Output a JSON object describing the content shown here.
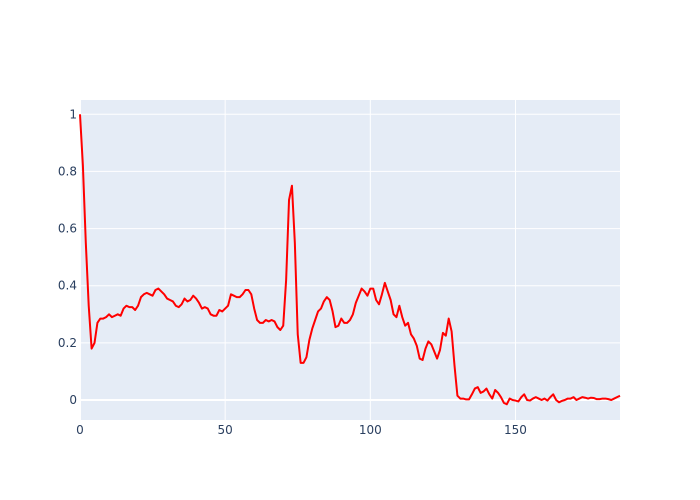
{
  "chart_data": {
    "type": "line",
    "title": "",
    "xlabel": "",
    "ylabel": "",
    "xlim": [
      0,
      186
    ],
    "ylim": [
      -0.07,
      1.05
    ],
    "x_ticks": [
      0,
      50,
      100,
      150
    ],
    "y_ticks": [
      0,
      0.2,
      0.4,
      0.6,
      0.8,
      1
    ],
    "x_tick_labels": [
      "0",
      "50",
      "100",
      "150"
    ],
    "y_tick_labels": [
      "0",
      "0.2",
      "0.4",
      "0.6",
      "0.8",
      "1"
    ],
    "grid": true,
    "legend": "none",
    "colors": {
      "plot_bg": "#e5ecf6",
      "grid": "#ffffff",
      "line": "#ff0000",
      "text": "#2a3f5f"
    },
    "series": [
      {
        "x": [
          0,
          1,
          2,
          3,
          4,
          5,
          6,
          7,
          8,
          9,
          10,
          11,
          12,
          13,
          14,
          15,
          16,
          17,
          18,
          19,
          20,
          21,
          22,
          23,
          24,
          25,
          26,
          27,
          28,
          29,
          30,
          31,
          32,
          33,
          34,
          35,
          36,
          37,
          38,
          39,
          40,
          41,
          42,
          43,
          44,
          45,
          46,
          47,
          48,
          49,
          50,
          51,
          52,
          53,
          54,
          55,
          56,
          57,
          58,
          59,
          60,
          61,
          62,
          63,
          64,
          65,
          66,
          67,
          68,
          69,
          70,
          71,
          72,
          73,
          74,
          75,
          76,
          77,
          78,
          79,
          80,
          81,
          82,
          83,
          84,
          85,
          86,
          87,
          88,
          89,
          90,
          91,
          92,
          93,
          94,
          95,
          96,
          97,
          98,
          99,
          100,
          101,
          102,
          103,
          104,
          105,
          106,
          107,
          108,
          109,
          110,
          111,
          112,
          113,
          114,
          115,
          116,
          117,
          118,
          119,
          120,
          121,
          122,
          123,
          124,
          125,
          126,
          127,
          128,
          129,
          130,
          131,
          132,
          133,
          134,
          135,
          136,
          137,
          138,
          139,
          140,
          141,
          142,
          143,
          144,
          145,
          146,
          147,
          148,
          149,
          150,
          151,
          152,
          153,
          154,
          155,
          156,
          157,
          158,
          159,
          160,
          161,
          162,
          163,
          164,
          165,
          166,
          167,
          168,
          169,
          170,
          171,
          172,
          173,
          174,
          175,
          176,
          177,
          178,
          179,
          180,
          181,
          182,
          183,
          184,
          185,
          186
        ],
        "y": [
          1.0,
          0.82,
          0.55,
          0.33,
          0.18,
          0.2,
          0.27,
          0.285,
          0.285,
          0.29,
          0.3,
          0.29,
          0.295,
          0.3,
          0.295,
          0.32,
          0.33,
          0.325,
          0.325,
          0.315,
          0.33,
          0.36,
          0.37,
          0.375,
          0.37,
          0.365,
          0.385,
          0.39,
          0.38,
          0.37,
          0.355,
          0.35,
          0.345,
          0.33,
          0.325,
          0.335,
          0.355,
          0.345,
          0.35,
          0.365,
          0.355,
          0.34,
          0.32,
          0.325,
          0.32,
          0.3,
          0.295,
          0.295,
          0.315,
          0.31,
          0.32,
          0.33,
          0.37,
          0.365,
          0.36,
          0.36,
          0.37,
          0.385,
          0.385,
          0.37,
          0.32,
          0.28,
          0.27,
          0.27,
          0.28,
          0.275,
          0.28,
          0.275,
          0.255,
          0.245,
          0.26,
          0.42,
          0.7,
          0.75,
          0.55,
          0.23,
          0.13,
          0.13,
          0.15,
          0.21,
          0.25,
          0.28,
          0.31,
          0.32,
          0.345,
          0.36,
          0.35,
          0.31,
          0.255,
          0.26,
          0.285,
          0.27,
          0.27,
          0.28,
          0.3,
          0.34,
          0.365,
          0.39,
          0.38,
          0.365,
          0.39,
          0.39,
          0.35,
          0.335,
          0.37,
          0.41,
          0.38,
          0.35,
          0.3,
          0.29,
          0.33,
          0.29,
          0.26,
          0.27,
          0.23,
          0.215,
          0.19,
          0.145,
          0.14,
          0.18,
          0.205,
          0.195,
          0.17,
          0.145,
          0.175,
          0.235,
          0.225,
          0.285,
          0.24,
          0.12,
          0.015,
          0.005,
          0.005,
          0.002,
          0.002,
          0.02,
          0.04,
          0.045,
          0.025,
          0.03,
          0.04,
          0.02,
          0.005,
          0.035,
          0.025,
          0.01,
          -0.01,
          -0.015,
          0.005,
          0.0,
          -0.002,
          -0.005,
          0.01,
          0.02,
          0.0,
          -0.002,
          0.005,
          0.01,
          0.005,
          0.0,
          0.005,
          -0.002,
          0.01,
          0.02,
          0.0,
          -0.008,
          -0.003,
          0.0,
          0.005,
          0.005,
          0.01,
          0.0,
          0.005,
          0.01,
          0.008,
          0.005,
          0.008,
          0.007,
          0.003,
          0.003,
          0.005,
          0.005,
          0.003,
          0.0,
          0.005,
          0.01,
          0.015
        ]
      }
    ]
  }
}
